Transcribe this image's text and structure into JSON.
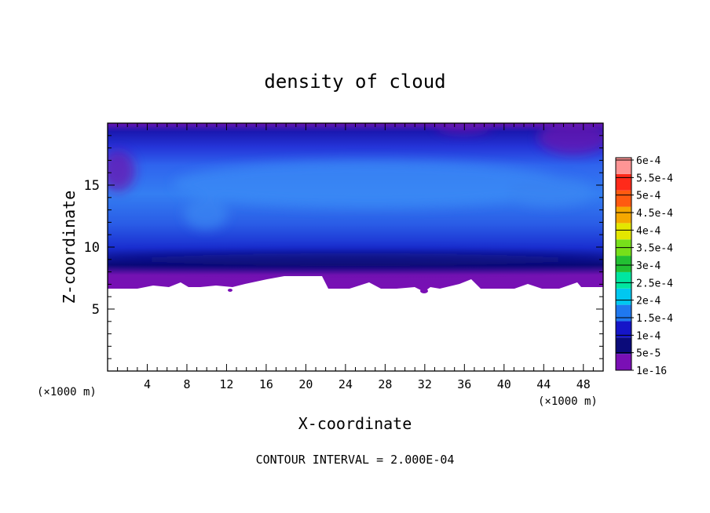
{
  "chart_data": {
    "type": "heatmap",
    "title": "density of cloud",
    "xlabel": "X-coordinate",
    "ylabel": "Z-coordinate",
    "x_unit_left": "(×1000 m)",
    "x_unit_right": "(×1000 m)",
    "footer": "CONTOUR INTERVAL = 2.000E-04",
    "xlim": [
      0,
      50
    ],
    "ylim": [
      0,
      20
    ],
    "x_ticks": [
      "4",
      "8",
      "12",
      "16",
      "20",
      "24",
      "28",
      "32",
      "36",
      "40",
      "44",
      "48"
    ],
    "y_ticks": [
      "5",
      "10",
      "15"
    ],
    "colorbar": {
      "labels": [
        "1e-16",
        "5e-5",
        "1e-4",
        "1.5e-4",
        "2e-4",
        "2.5e-4",
        "3e-4",
        "3.5e-4",
        "4e-4",
        "4.5e-4",
        "5e-4",
        "5.5e-4",
        "6e-4"
      ],
      "colors": [
        "#7a0fb5",
        "#0b0b7a",
        "#1515c8",
        "#1f78ef",
        "#00c8f0",
        "#00e6a0",
        "#22c033",
        "#77e01a",
        "#e4e600",
        "#f5a800",
        "#ff5a10",
        "#ff2a1a",
        "#ff9595"
      ]
    },
    "field": {
      "cloud_base_z": 7,
      "cloud_top_z": 20,
      "core_z_range": [
        11,
        17
      ],
      "core_max_value": 0.00015
    }
  }
}
